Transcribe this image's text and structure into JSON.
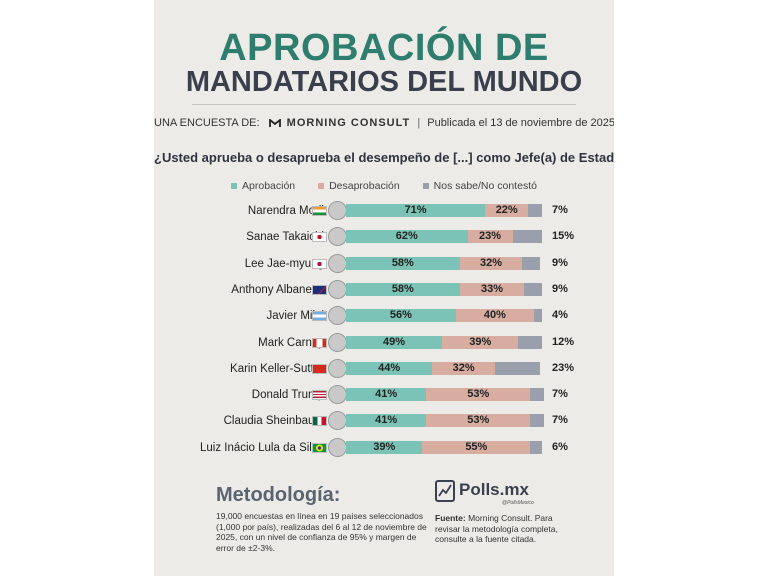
{
  "header": {
    "title_line1": "APROBACIÓN DE",
    "title_line2": "MANDATARIOS DEL MUNDO",
    "survey_prefix": "UNA ENCUESTA DE:",
    "brand": "MORNING CONSULT",
    "published": "Publicada el 13 de noviembre de 2025"
  },
  "colors": {
    "approval": "#7cc3b7",
    "disapproval": "#d7ada1",
    "no_answer": "#9aa0ab",
    "title_green": "#2e7d6e",
    "title_dark": "#3a3f4d"
  },
  "chart_data": {
    "type": "bar",
    "stacked": true,
    "orientation": "horizontal",
    "title": "¿Usted aprueba o desaprueba el desempeño de [...] como Jefe(a) de Estado?",
    "legend_position": "top",
    "categories": [
      "Narendra Modi",
      "Sanae Takaichi",
      "Lee Jae-myung",
      "Anthony Albanese",
      "Javier Milei",
      "Mark Carney",
      "Karin Keller-Sutter",
      "Donald Trump",
      "Claudia Sheinbaum",
      "Luiz Inácio Lula da Silva"
    ],
    "series": [
      {
        "name": "Aprobación",
        "values": [
          71,
          62,
          58,
          58,
          56,
          49,
          44,
          41,
          41,
          39
        ],
        "labels": [
          "71%",
          "62%",
          "58%",
          "58%",
          "56%",
          "49%",
          "44%",
          "41%",
          "41%",
          "39%"
        ]
      },
      {
        "name": "Desaprobación",
        "values": [
          22,
          23,
          32,
          33,
          40,
          39,
          32,
          53,
          53,
          55
        ],
        "labels": [
          "22%",
          "23%",
          "32%",
          "33%",
          "40%",
          "39%",
          "32%",
          "53%",
          "53%",
          "55%"
        ]
      },
      {
        "name": "Nos sabe/No contestó",
        "values": [
          7,
          15,
          9,
          9,
          4,
          12,
          23,
          7,
          7,
          6
        ],
        "labels": [
          "7%",
          "15%",
          "9%",
          "9%",
          "4%",
          "12%",
          "23%",
          "7%",
          "7%",
          "6%"
        ]
      }
    ],
    "flags": [
      "india-flag-icon",
      "japan-flag-icon",
      "south-korea-flag-icon",
      "australia-flag-icon",
      "argentina-flag-icon",
      "canada-flag-icon",
      "switzerland-flag-icon",
      "usa-flag-icon",
      "mexico-flag-icon",
      "brazil-flag-icon"
    ],
    "xlim": [
      0,
      100
    ]
  },
  "methodology": {
    "title": "Metodología:",
    "text": "19,000 encuestas en línea en 19 países seleccionados (1,000 por país), realizadas del 6 al 12 de noviembre de 2025, con un nivel de confianza de 95% y margen de error de ±2-3%."
  },
  "source": {
    "logo_text": "Polls.mx",
    "logo_tagline": "@PollsMexico",
    "label": "Fuente:",
    "text": "Morning Consult. Para revisar la metodología completa, consulte a la fuente citada."
  }
}
